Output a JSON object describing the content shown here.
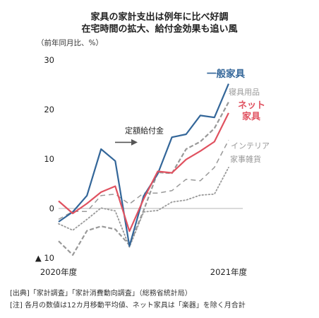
{
  "title_lines": [
    "家具の家計支出は例年に比べ好調",
    "在宅時間の拡大、給付金効果も追い風"
  ],
  "unit_label": "（前年同月比、%）",
  "notes": [
    "[出典]「家計調査」「家計消費動向調査」（総務省統計局）",
    "[注] 各月の数値は12カ月移動平均値、ネット家具は「楽器」を除く月合計"
  ],
  "chart_data": {
    "type": "line",
    "x": [
      "2020-04",
      "2020-05",
      "2020-06",
      "2020-07",
      "2020-08",
      "2020-09",
      "2020-10",
      "2020-11",
      "2020-12",
      "2021-01",
      "2021-02",
      "2021-03",
      "2021-04",
      "2021-05"
    ],
    "x_tick_labels": [
      {
        "x": "2020-04",
        "label": "2020年度"
      },
      {
        "x": "2021-04",
        "label": "2021年度"
      }
    ],
    "ylim": [
      -10,
      30
    ],
    "y_ticks": [
      {
        "value": 30,
        "label": "30"
      },
      {
        "value": 20,
        "label": "20"
      },
      {
        "value": 10,
        "label": "10"
      },
      {
        "value": 0,
        "label": "0"
      },
      {
        "value": -10,
        "label": "▲ 10"
      }
    ],
    "series": [
      {
        "name": "一般家具",
        "color": "#336699",
        "style": "solid",
        "width": 2.2,
        "bold_label": true,
        "values": [
          -2.7,
          -0.7,
          2.6,
          12.0,
          9.6,
          -7.6,
          2.5,
          7.0,
          14.4,
          15.0,
          18.8,
          18.4,
          25.2,
          null
        ]
      },
      {
        "name": "寝具用品",
        "color": "#999999",
        "style": "dashed",
        "width": 2.2,
        "bold_label": false,
        "values": [
          -6.6,
          -9.4,
          -4.5,
          -3.6,
          -4.2,
          -7.4,
          -0.4,
          7.3,
          7.1,
          12.0,
          13.5,
          16.2,
          21.5,
          null
        ]
      },
      {
        "name": "ネット家具",
        "color": "#e05260",
        "style": "solid",
        "width": 2.2,
        "bold_label": true,
        "values": [
          1.5,
          -1.0,
          1.0,
          3.3,
          4.5,
          -4.6,
          1.9,
          7.5,
          7.2,
          9.9,
          11.6,
          13.5,
          19.3,
          null
        ]
      },
      {
        "name": "インテリア",
        "color": "#999999",
        "style": "dash-long",
        "width": 1.5,
        "bold_label": false,
        "values": [
          -2.2,
          -0.6,
          -0.6,
          2.6,
          2.9,
          0.9,
          3.1,
          3.1,
          3.6,
          5.9,
          5.6,
          8.3,
          13.8,
          null
        ]
      },
      {
        "name": "家事雑貨",
        "color": "#999999",
        "style": "dotted",
        "width": 1.8,
        "bold_label": false,
        "values": [
          -3.1,
          -4.4,
          -2.2,
          0.1,
          -0.5,
          -7.8,
          -0.7,
          -0.4,
          1.3,
          1.7,
          2.7,
          2.9,
          8.3,
          null
        ]
      }
    ],
    "annotation": {
      "text": "定額給付金",
      "x": "2020-06",
      "y": 15.8
    }
  }
}
